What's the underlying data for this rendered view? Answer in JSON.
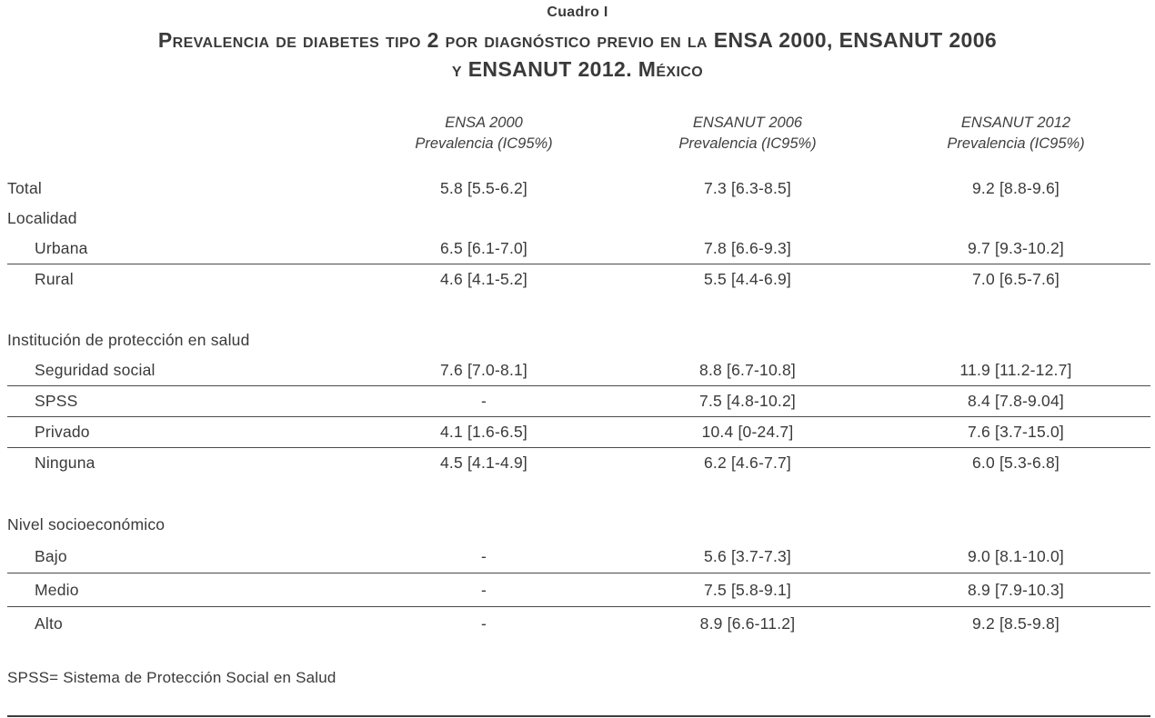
{
  "table": {
    "caption": "Cuadro I",
    "title_line1": "Prevalencia de diabetes tipo 2 por diagnóstico previo en la ENSA 2000, ENSANUT 2006",
    "title_line2": "y ENSANUT 2012. México",
    "columns": [
      {
        "survey": "ENSA 2000",
        "measure": "Prevalencia (IC95%)"
      },
      {
        "survey": "ENSANUT 2006",
        "measure": "Prevalencia (IC95%)"
      },
      {
        "survey": "ENSANUT 2012",
        "measure": "Prevalencia (IC95%)"
      }
    ],
    "rows": [
      {
        "label": "Total",
        "values": [
          "5.8 [5.5-6.2]",
          "7.3 [6.3-8.5]",
          "9.2 [8.8-9.6]"
        ]
      },
      {
        "label": "Localidad"
      },
      {
        "label": "Urbana",
        "values": [
          "6.5 [6.1-7.0]",
          "7.8 [6.6-9.3]",
          "9.7 [9.3-10.2]"
        ]
      },
      {
        "label": "Rural",
        "values": [
          "4.6 [4.1-5.2]",
          "5.5 [4.4-6.9]",
          "7.0 [6.5-7.6]"
        ]
      },
      {
        "label": "Institución de protección en salud"
      },
      {
        "label": "Seguridad social",
        "values": [
          "7.6 [7.0-8.1]",
          "8.8 [6.7-10.8]",
          "11.9 [11.2-12.7]"
        ]
      },
      {
        "label": "SPSS",
        "values": [
          "-",
          "7.5 [4.8-10.2]",
          "8.4 [7.8-9.04]"
        ]
      },
      {
        "label": "Privado",
        "values": [
          "4.1 [1.6-6.5]",
          "10.4 [0-24.7]",
          "7.6 [3.7-15.0]"
        ]
      },
      {
        "label": "Ninguna",
        "values": [
          "4.5 [4.1-4.9]",
          "6.2 [4.6-7.7]",
          "6.0 [5.3-6.8]"
        ]
      },
      {
        "label": "Nivel socioeconómico"
      },
      {
        "label": "Bajo",
        "values": [
          "-",
          "5.6 [3.7-7.3]",
          "9.0 [8.1-10.0]"
        ]
      },
      {
        "label": "Medio",
        "values": [
          "-",
          "7.5 [5.8-9.1]",
          "8.9 [7.9-10.3]"
        ]
      },
      {
        "label": "Alto",
        "values": [
          "-",
          "8.9 [6.6-11.2]",
          "9.2 [8.5-9.8]"
        ]
      }
    ],
    "footnote": "SPSS= Sistema de Protección Social en Salud"
  }
}
